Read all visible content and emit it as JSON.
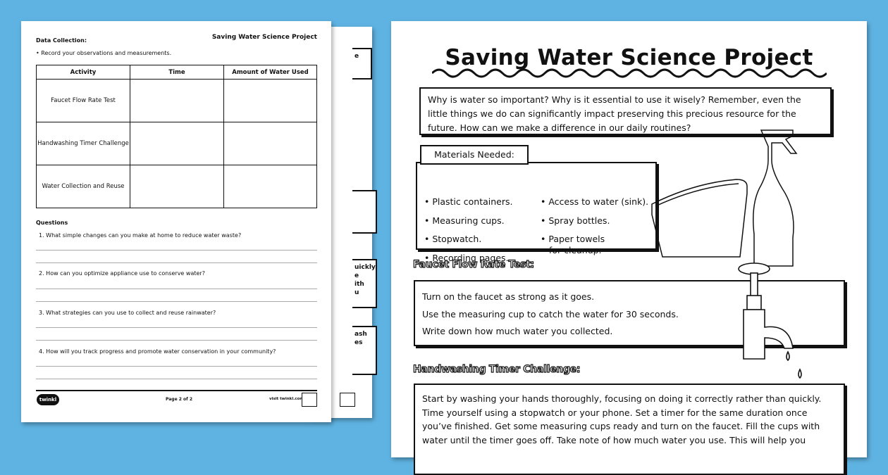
{
  "back_page": {
    "fragments": [
      "e",
      "uickly.\ne\nith\nu",
      "ash\nes"
    ]
  },
  "worksheet_page2": {
    "section_title": "Data Collection:",
    "header": "Saving Water Science Project",
    "instruction": "• Record your observations and measurements.",
    "table": {
      "headers": [
        "Activity",
        "Time",
        "Amount of Water Used"
      ],
      "rows": [
        [
          "Faucet Flow Rate Test",
          "",
          ""
        ],
        [
          "Handwashing Timer Challenge",
          "",
          ""
        ],
        [
          "Water Collection and Reuse",
          "",
          ""
        ]
      ]
    },
    "questions_title": "Questions",
    "questions": [
      "1.  What simple changes can you make at home to reduce water waste?",
      "2.  How can you optimize appliance use to conserve water?",
      "3.  What strategies can you use to collect and reuse rainwater?",
      "4.  How will you track progress and promote water conservation in your community?"
    ],
    "footer": {
      "logo": "twinkl",
      "page": "Page 2 of 2",
      "visit": "visit twinkl.com"
    }
  },
  "worksheet_page1": {
    "title": "Saving Water Science Project",
    "intro": "Why is water so important?  Why is it essential to use it wisely? Remember, even the little things we do can significantly impact preserving this precious resource for the future. How can we make a difference in our daily routines?",
    "materials_title": "Materials Needed:",
    "materials": [
      "• Plastic containers.",
      "• Measuring cups.",
      "• Stopwatch.",
      "• Recording pages.",
      "• Access to water (sink).",
      "• Spray bottles.",
      "• Paper towels\n   for cleanup."
    ],
    "faucet_title": "Faucet Flow Rate Test:",
    "faucet_steps": [
      "Turn on the faucet as strong as it goes.",
      "Use the measuring cup to catch the water for 30 seconds.",
      "Write down how much water you collected."
    ],
    "handwashing_title": "Handwashing Timer Challenge:",
    "handwashing_text": "Start by washing your hands thoroughly, focusing on doing it correctly rather than quickly. Time yourself using a stopwatch or your phone. Set a timer for the same duration once you’ve finished. Get some measuring cups ready and turn on the faucet. Fill the cups with water until the timer goes off. Take note of how much water you use. This will help you"
  }
}
